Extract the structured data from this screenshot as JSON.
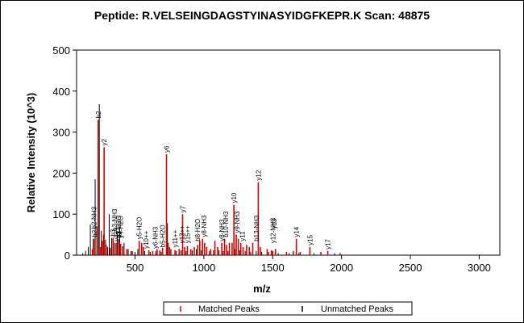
{
  "chart_data": {
    "type": "bar",
    "title": "Peptide: R.VELSEINGDAGSTYINASYIDGFKEPR.K Scan: 48875",
    "xlabel": "m/z",
    "ylabel": "Relative Intensity (10^3)",
    "xlim": [
      75,
      3150
    ],
    "ylim": [
      0,
      500
    ],
    "xticks": [
      "500",
      "1000",
      "1500",
      "2000",
      "2500",
      "3000"
    ],
    "yticks": [
      "0",
      "100",
      "200",
      "300",
      "400",
      "500"
    ],
    "grid": false,
    "legend_position": "bottom",
    "colors": {
      "matched": "#e00000",
      "unmatched": "#000000"
    },
    "legend": {
      "matched_symbol": "1",
      "matched_label": "Matched Peaks",
      "unmatched_symbol": "1",
      "unmatched_label": "Unmatched Peaks"
    },
    "series": [
      {
        "name": "Matched Peaks",
        "points": [
          {
            "x": 190,
            "y": 15
          },
          {
            "x": 205,
            "y": 40,
            "label": "b2"
          },
          {
            "x": 232,
            "y": 330,
            "label": "b2"
          },
          {
            "x": 250,
            "y": 20
          },
          {
            "x": 262,
            "y": 35
          },
          {
            "x": 275,
            "y": 263,
            "label": "y2"
          },
          {
            "x": 290,
            "y": 25
          },
          {
            "x": 320,
            "y": 18
          },
          {
            "x": 340,
            "y": 42,
            "label": "b3"
          },
          {
            "x": 362,
            "y": 30
          },
          {
            "x": 380,
            "y": 38,
            "label": "y3"
          },
          {
            "x": 395,
            "y": 28
          },
          {
            "x": 410,
            "y": 22
          },
          {
            "x": 440,
            "y": 15
          },
          {
            "x": 480,
            "y": 10
          },
          {
            "x": 530,
            "y": 35,
            "label": "y5-H2O"
          },
          {
            "x": 548,
            "y": 30
          },
          {
            "x": 560,
            "y": 20
          },
          {
            "x": 600,
            "y": 12
          },
          {
            "x": 628,
            "y": 10
          },
          {
            "x": 660,
            "y": 15
          },
          {
            "x": 680,
            "y": 12
          },
          {
            "x": 700,
            "y": 18
          },
          {
            "x": 728,
            "y": 246,
            "label": "y6"
          },
          {
            "x": 740,
            "y": 30
          },
          {
            "x": 760,
            "y": 15
          },
          {
            "x": 790,
            "y": 12
          },
          {
            "x": 820,
            "y": 15
          },
          {
            "x": 845,
            "y": 100,
            "label": "y7"
          },
          {
            "x": 860,
            "y": 20
          },
          {
            "x": 880,
            "y": 22
          },
          {
            "x": 905,
            "y": 15
          },
          {
            "x": 930,
            "y": 20
          },
          {
            "x": 955,
            "y": 25
          },
          {
            "x": 970,
            "y": 35
          },
          {
            "x": 990,
            "y": 40
          },
          {
            "x": 1005,
            "y": 30
          },
          {
            "x": 1020,
            "y": 20
          },
          {
            "x": 1050,
            "y": 15
          },
          {
            "x": 1080,
            "y": 35
          },
          {
            "x": 1100,
            "y": 20
          },
          {
            "x": 1130,
            "y": 30
          },
          {
            "x": 1150,
            "y": 40
          },
          {
            "x": 1165,
            "y": 25
          },
          {
            "x": 1185,
            "y": 30
          },
          {
            "x": 1205,
            "y": 30
          },
          {
            "x": 1218,
            "y": 123,
            "label": "y10"
          },
          {
            "x": 1235,
            "y": 50
          },
          {
            "x": 1250,
            "y": 40
          },
          {
            "x": 1268,
            "y": 30
          },
          {
            "x": 1285,
            "y": 20
          },
          {
            "x": 1310,
            "y": 25
          },
          {
            "x": 1330,
            "y": 20
          },
          {
            "x": 1355,
            "y": 30
          },
          {
            "x": 1395,
            "y": 178,
            "label": "y12"
          },
          {
            "x": 1410,
            "y": 20
          },
          {
            "x": 1460,
            "y": 15
          },
          {
            "x": 1490,
            "y": 12
          },
          {
            "x": 1500,
            "y": 10
          },
          {
            "x": 1520,
            "y": 15
          },
          {
            "x": 1600,
            "y": 8
          },
          {
            "x": 1650,
            "y": 10
          },
          {
            "x": 1672,
            "y": 40,
            "label": "y14"
          },
          {
            "x": 1700,
            "y": 8
          },
          {
            "x": 1770,
            "y": 20,
            "label": "y15"
          },
          {
            "x": 1850,
            "y": 8
          },
          {
            "x": 1900,
            "y": 10,
            "label": "y17"
          },
          {
            "x": 1990,
            "y": 5
          }
        ]
      },
      {
        "name": "Unmatched Peaks",
        "points": [
          {
            "x": 120,
            "y": 5
          },
          {
            "x": 140,
            "y": 10
          },
          {
            "x": 160,
            "y": 20
          },
          {
            "x": 175,
            "y": 75
          },
          {
            "x": 195,
            "y": 40
          },
          {
            "x": 210,
            "y": 185
          },
          {
            "x": 222,
            "y": 70
          },
          {
            "x": 240,
            "y": 368
          },
          {
            "x": 255,
            "y": 60
          },
          {
            "x": 270,
            "y": 50
          },
          {
            "x": 285,
            "y": 38
          },
          {
            "x": 300,
            "y": 20
          },
          {
            "x": 312,
            "y": 100
          },
          {
            "x": 330,
            "y": 42
          },
          {
            "x": 350,
            "y": 30
          },
          {
            "x": 370,
            "y": 55
          },
          {
            "x": 388,
            "y": 70
          },
          {
            "x": 420,
            "y": 30
          },
          {
            "x": 450,
            "y": 15
          },
          {
            "x": 470,
            "y": 10
          },
          {
            "x": 500,
            "y": 8
          },
          {
            "x": 520,
            "y": 15
          },
          {
            "x": 570,
            "y": 10
          },
          {
            "x": 610,
            "y": 8
          },
          {
            "x": 650,
            "y": 10
          },
          {
            "x": 690,
            "y": 8
          },
          {
            "x": 735,
            "y": 78
          },
          {
            "x": 750,
            "y": 20
          },
          {
            "x": 800,
            "y": 10
          },
          {
            "x": 835,
            "y": 12
          },
          {
            "x": 870,
            "y": 10
          },
          {
            "x": 915,
            "y": 12
          },
          {
            "x": 945,
            "y": 15
          },
          {
            "x": 980,
            "y": 12
          },
          {
            "x": 1040,
            "y": 10
          },
          {
            "x": 1070,
            "y": 12
          },
          {
            "x": 1110,
            "y": 12
          },
          {
            "x": 1140,
            "y": 10
          },
          {
            "x": 1175,
            "y": 10
          },
          {
            "x": 1225,
            "y": 15
          },
          {
            "x": 1260,
            "y": 12
          },
          {
            "x": 1300,
            "y": 10
          },
          {
            "x": 1340,
            "y": 8
          },
          {
            "x": 1380,
            "y": 10
          },
          {
            "x": 1420,
            "y": 8
          },
          {
            "x": 1470,
            "y": 8
          },
          {
            "x": 1540,
            "y": 5
          },
          {
            "x": 1620,
            "y": 5
          },
          {
            "x": 1690,
            "y": 5
          },
          {
            "x": 1800,
            "y": 5
          },
          {
            "x": 1950,
            "y": 5
          }
        ]
      }
    ],
    "annotations": [
      {
        "x": 200,
        "label": "b2-NH3",
        "y": 60
      },
      {
        "x": 350,
        "label": "b3-NH3",
        "y": 55
      },
      {
        "x": 362,
        "label": "y3++",
        "y": 30
      },
      {
        "x": 380,
        "label": "b3-H2O",
        "y": 38
      },
      {
        "x": 395,
        "label": "y4-H2O",
        "y": 38
      },
      {
        "x": 580,
        "label": "y10++",
        "y": 12
      },
      {
        "x": 645,
        "label": "y6-NH3",
        "y": 12
      },
      {
        "x": 700,
        "label": "b5-H2O",
        "y": 15
      },
      {
        "x": 790,
        "label": "y11++",
        "y": 15
      },
      {
        "x": 840,
        "label": "y13++",
        "y": 25
      },
      {
        "x": 880,
        "label": "y15++",
        "y": 25
      },
      {
        "x": 955,
        "label": "b8-H2O",
        "y": 30
      },
      {
        "x": 1000,
        "label": "y8-NH3",
        "y": 40
      },
      {
        "x": 1130,
        "label": "y8-NH3",
        "y": 30
      },
      {
        "x": 1160,
        "label": "b10-NH3",
        "y": 40
      },
      {
        "x": 1240,
        "label": "y9-NH3",
        "y": 50
      },
      {
        "x": 1280,
        "label": "y11",
        "y": 30
      },
      {
        "x": 1380,
        "label": "b13-NH3",
        "y": 30
      },
      {
        "x": 1500,
        "label": "y12-NH3",
        "y": 25
      },
      {
        "x": 1510,
        "label": "y13",
        "y": 60
      }
    ]
  }
}
